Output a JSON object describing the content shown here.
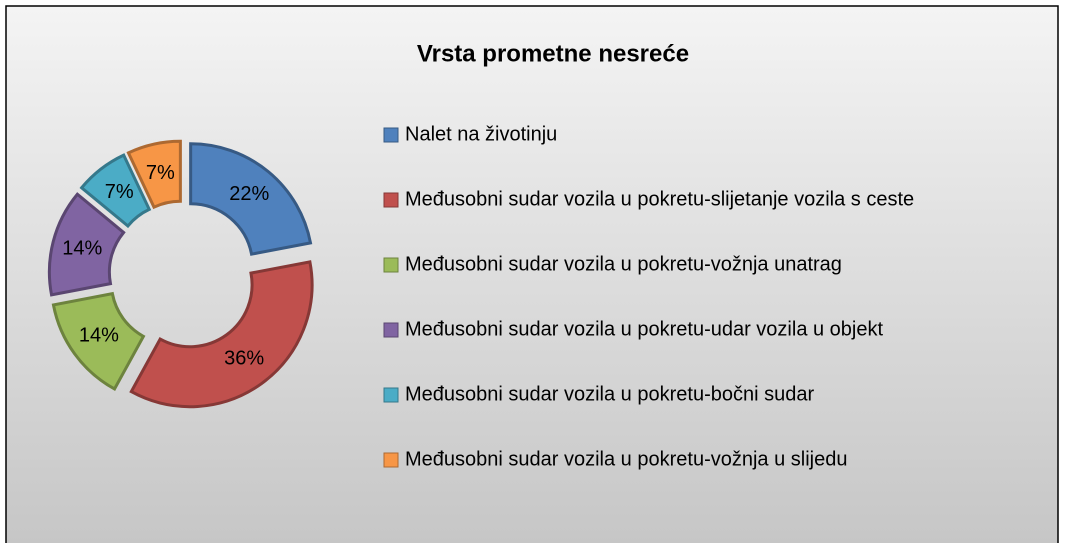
{
  "chart_data": {
    "type": "donut",
    "title": "Vrsta prometne nesreće",
    "categories": [
      "Nalet na životinju",
      "Međusobni sudar vozila u pokretu-slijetanje vozila s ceste",
      "Međusobni sudar vozila u pokretu-vožnja unatrag",
      "Međusobni sudar vozila u pokretu-udar vozila u objekt",
      "Međusobni sudar vozila u pokretu-bočni sudar",
      "Međusobni sudar vozila u pokretu-vožnja u slijedu"
    ],
    "values": [
      22,
      36,
      14,
      14,
      7,
      7
    ],
    "value_labels": [
      "22%",
      "36%",
      "14%",
      "14%",
      "7%",
      "7%"
    ],
    "colors": [
      "#4f81bd",
      "#c0504d",
      "#9bbb59",
      "#8064a2",
      "#4bacc6",
      "#f79646"
    ],
    "legend": "right"
  }
}
